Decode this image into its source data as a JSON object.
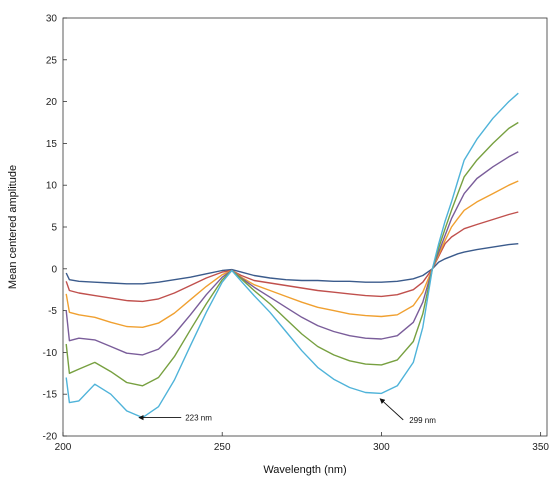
{
  "chart_data": {
    "type": "line",
    "title": "",
    "xlabel": "Wavelength (nm)",
    "ylabel": "Mean centered amplitude",
    "xlim": [
      200,
      352
    ],
    "ylim": [
      -20,
      30
    ],
    "xticks": [
      200,
      250,
      300,
      350
    ],
    "yticks": [
      -20,
      -15,
      -10,
      -5,
      0,
      5,
      10,
      15,
      20,
      25,
      30
    ],
    "grid": false,
    "legend": "none",
    "series": [
      {
        "color": "#3b5b8c",
        "x": [
          201,
          202,
          205,
          210,
          215,
          220,
          225,
          230,
          235,
          240,
          245,
          250,
          253,
          256,
          260,
          265,
          270,
          275,
          280,
          285,
          290,
          295,
          300,
          305,
          310,
          313,
          316,
          318,
          320,
          322,
          324,
          326,
          330,
          335,
          340,
          343
        ],
        "y": [
          -0.5,
          -1.3,
          -1.5,
          -1.6,
          -1.7,
          -1.8,
          -1.8,
          -1.6,
          -1.3,
          -1.0,
          -0.6,
          -0.2,
          -0.1,
          -0.4,
          -0.8,
          -1.1,
          -1.3,
          -1.4,
          -1.4,
          -1.5,
          -1.5,
          -1.6,
          -1.6,
          -1.5,
          -1.2,
          -0.8,
          0.0,
          0.8,
          1.2,
          1.5,
          1.8,
          2.0,
          2.3,
          2.6,
          2.9,
          3.0
        ]
      },
      {
        "color": "#c0504d",
        "x": [
          201,
          202,
          205,
          210,
          215,
          220,
          225,
          230,
          235,
          240,
          245,
          250,
          253,
          256,
          260,
          265,
          270,
          275,
          280,
          285,
          290,
          295,
          300,
          305,
          310,
          313,
          316,
          318,
          320,
          322,
          324,
          326,
          330,
          335,
          340,
          343
        ],
        "y": [
          -1.5,
          -2.6,
          -2.9,
          -3.2,
          -3.5,
          -3.8,
          -3.9,
          -3.6,
          -2.9,
          -2.0,
          -1.1,
          -0.4,
          -0.2,
          -0.8,
          -1.4,
          -1.7,
          -2.0,
          -2.3,
          -2.6,
          -2.8,
          -3.0,
          -3.2,
          -3.3,
          -3.1,
          -2.5,
          -1.6,
          0.0,
          1.5,
          3.0,
          3.8,
          4.3,
          4.8,
          5.3,
          5.9,
          6.5,
          6.8
        ]
      },
      {
        "color": "#f0a030",
        "x": [
          201,
          202,
          205,
          210,
          215,
          220,
          225,
          230,
          235,
          240,
          245,
          250,
          253,
          256,
          260,
          265,
          270,
          275,
          280,
          285,
          290,
          295,
          300,
          305,
          310,
          313,
          316,
          318,
          320,
          322,
          324,
          326,
          330,
          335,
          340,
          343
        ],
        "y": [
          -3.0,
          -5.2,
          -5.5,
          -5.8,
          -6.4,
          -6.9,
          -7.0,
          -6.5,
          -5.3,
          -3.7,
          -2.1,
          -0.7,
          -0.2,
          -1.0,
          -1.9,
          -2.6,
          -3.3,
          -4.0,
          -4.6,
          -5.0,
          -5.4,
          -5.6,
          -5.7,
          -5.5,
          -4.4,
          -2.8,
          0.0,
          1.7,
          3.4,
          5.0,
          6.0,
          7.0,
          8.0,
          9.0,
          10.0,
          10.5
        ]
      },
      {
        "color": "#7a5d9a",
        "x": [
          201,
          202,
          205,
          210,
          215,
          220,
          225,
          230,
          235,
          240,
          245,
          250,
          253,
          256,
          260,
          265,
          270,
          275,
          280,
          285,
          290,
          295,
          300,
          305,
          310,
          313,
          316,
          318,
          320,
          322,
          324,
          326,
          330,
          335,
          340,
          343
        ],
        "y": [
          -5.0,
          -8.6,
          -8.3,
          -8.5,
          -9.3,
          -10.1,
          -10.3,
          -9.6,
          -7.8,
          -5.5,
          -3.1,
          -1.0,
          -0.2,
          -1.1,
          -2.2,
          -3.4,
          -4.6,
          -5.8,
          -6.8,
          -7.5,
          -8.0,
          -8.3,
          -8.4,
          -8.0,
          -6.4,
          -4.0,
          0.0,
          2.0,
          4.0,
          6.0,
          7.5,
          9.0,
          10.8,
          12.2,
          13.4,
          14.0
        ]
      },
      {
        "color": "#77a040",
        "x": [
          201,
          202,
          205,
          210,
          215,
          220,
          225,
          230,
          235,
          240,
          245,
          250,
          253,
          256,
          260,
          265,
          270,
          275,
          280,
          285,
          290,
          295,
          300,
          305,
          310,
          313,
          316,
          318,
          320,
          322,
          324,
          326,
          330,
          335,
          340,
          343
        ],
        "y": [
          -9.0,
          -12.5,
          -12.0,
          -11.2,
          -12.3,
          -13.6,
          -14.0,
          -13.0,
          -10.5,
          -7.3,
          -4.2,
          -1.3,
          -0.2,
          -1.2,
          -2.6,
          -4.2,
          -6.0,
          -7.8,
          -9.3,
          -10.3,
          -11.0,
          -11.4,
          -11.5,
          -10.9,
          -8.7,
          -5.4,
          0.0,
          2.5,
          4.8,
          7.0,
          9.0,
          11.0,
          13.0,
          15.0,
          16.8,
          17.5
        ]
      },
      {
        "color": "#4fb3d9",
        "x": [
          201,
          202,
          205,
          210,
          215,
          220,
          225,
          230,
          235,
          240,
          245,
          250,
          253,
          256,
          260,
          265,
          270,
          275,
          280,
          285,
          290,
          295,
          300,
          305,
          310,
          313,
          316,
          318,
          320,
          322,
          324,
          326,
          330,
          335,
          340,
          343
        ],
        "y": [
          -13.0,
          -16.0,
          -15.8,
          -13.8,
          -15.0,
          -17.0,
          -17.8,
          -16.5,
          -13.3,
          -9.2,
          -5.2,
          -1.6,
          -0.2,
          -1.5,
          -3.2,
          -5.2,
          -7.5,
          -9.8,
          -11.8,
          -13.2,
          -14.2,
          -14.8,
          -14.9,
          -14.0,
          -11.2,
          -7.0,
          0.0,
          3.0,
          5.7,
          8.0,
          10.5,
          13.0,
          15.5,
          18.0,
          20.0,
          21.0
        ]
      }
    ],
    "annotations": [
      {
        "text": "223 nm",
        "x": 223,
        "y": -17.8
      },
      {
        "text": "299 nm",
        "x": 299,
        "y": -15.2
      }
    ]
  }
}
